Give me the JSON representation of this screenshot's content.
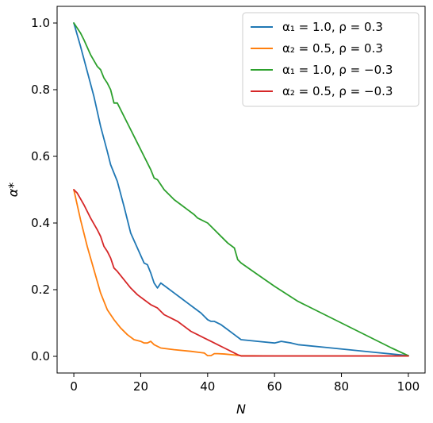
{
  "chart_data": {
    "type": "line",
    "title": "",
    "xlabel": "N",
    "ylabel": "α*",
    "xlim": [
      -5,
      105
    ],
    "ylim": [
      -0.05,
      1.05
    ],
    "xticks": [
      0,
      20,
      40,
      60,
      80,
      100
    ],
    "xtick_labels": [
      "0",
      "20",
      "40",
      "60",
      "80",
      "100"
    ],
    "yticks": [
      0.0,
      0.2,
      0.4,
      0.6,
      0.8,
      1.0
    ],
    "ytick_labels": [
      "0.0",
      "0.2",
      "0.4",
      "0.6",
      "0.8",
      "1.0"
    ],
    "grid": false,
    "legend_position": "top-right",
    "series": [
      {
        "name": "α₁ = 1.0, ρ = 0.3",
        "color": "#1f77b4",
        "x": [
          0,
          2,
          4,
          6,
          8,
          10,
          11,
          13,
          15,
          17,
          19,
          21,
          22,
          23,
          24,
          25,
          26,
          28,
          30,
          32,
          34,
          36,
          38,
          40,
          41,
          42,
          44,
          46,
          48,
          50,
          55,
          60,
          62,
          65,
          67,
          70,
          75,
          80,
          85,
          90,
          95,
          100
        ],
        "y": [
          1.0,
          0.93,
          0.855,
          0.78,
          0.69,
          0.615,
          0.575,
          0.525,
          0.45,
          0.37,
          0.325,
          0.28,
          0.275,
          0.25,
          0.22,
          0.205,
          0.22,
          0.205,
          0.19,
          0.175,
          0.16,
          0.145,
          0.13,
          0.11,
          0.105,
          0.105,
          0.095,
          0.08,
          0.065,
          0.05,
          0.045,
          0.04,
          0.045,
          0.04,
          0.035,
          0.032,
          0.027,
          0.022,
          0.017,
          0.012,
          0.007,
          0.002
        ]
      },
      {
        "name": "α₂ = 0.5, ρ = 0.3",
        "color": "#ff7f0e",
        "x": [
          0,
          2,
          4,
          6,
          8,
          10,
          12,
          14,
          16,
          18,
          20,
          21,
          22,
          23,
          24,
          26,
          30,
          35,
          39,
          40,
          41,
          42,
          43,
          45,
          50,
          60,
          80,
          100
        ],
        "y": [
          0.5,
          0.41,
          0.33,
          0.26,
          0.19,
          0.14,
          0.11,
          0.085,
          0.065,
          0.05,
          0.045,
          0.04,
          0.04,
          0.045,
          0.035,
          0.025,
          0.02,
          0.015,
          0.01,
          0.002,
          0.002,
          0.008,
          0.008,
          0.007,
          0.002,
          0.001,
          0.001,
          0.001
        ]
      },
      {
        "name": "α₁ = 1.0, ρ = −0.3",
        "color": "#2ca02c",
        "x": [
          0,
          2,
          3,
          5,
          7,
          8,
          9,
          10,
          11,
          12,
          13,
          15,
          17,
          19,
          21,
          23,
          24,
          25,
          27,
          29,
          30,
          32,
          34,
          36,
          37,
          40,
          42,
          44,
          46,
          48,
          49,
          50,
          55,
          60,
          67,
          70,
          75,
          80,
          85,
          90,
          95,
          100
        ],
        "y": [
          1.0,
          0.97,
          0.95,
          0.905,
          0.87,
          0.86,
          0.835,
          0.82,
          0.8,
          0.76,
          0.76,
          0.72,
          0.68,
          0.64,
          0.6,
          0.56,
          0.535,
          0.53,
          0.5,
          0.48,
          0.47,
          0.455,
          0.44,
          0.425,
          0.415,
          0.4,
          0.38,
          0.36,
          0.34,
          0.325,
          0.29,
          0.28,
          0.245,
          0.21,
          0.165,
          0.15,
          0.125,
          0.1,
          0.075,
          0.05,
          0.025,
          0.002
        ]
      },
      {
        "name": "α₂ = 0.5, ρ = −0.3",
        "color": "#d62728",
        "x": [
          0,
          1,
          3,
          5,
          7,
          8,
          9,
          10,
          11,
          12,
          13,
          15,
          17,
          19,
          21,
          23,
          25,
          27,
          29,
          31,
          33,
          35,
          37,
          39,
          41,
          43,
          45,
          47,
          49,
          50,
          60,
          80,
          100
        ],
        "y": [
          0.5,
          0.49,
          0.455,
          0.415,
          0.38,
          0.36,
          0.33,
          0.315,
          0.295,
          0.265,
          0.255,
          0.23,
          0.205,
          0.185,
          0.17,
          0.155,
          0.145,
          0.125,
          0.115,
          0.105,
          0.09,
          0.075,
          0.065,
          0.055,
          0.045,
          0.035,
          0.025,
          0.015,
          0.005,
          0.001,
          0.001,
          0.001,
          0.001
        ]
      }
    ]
  }
}
